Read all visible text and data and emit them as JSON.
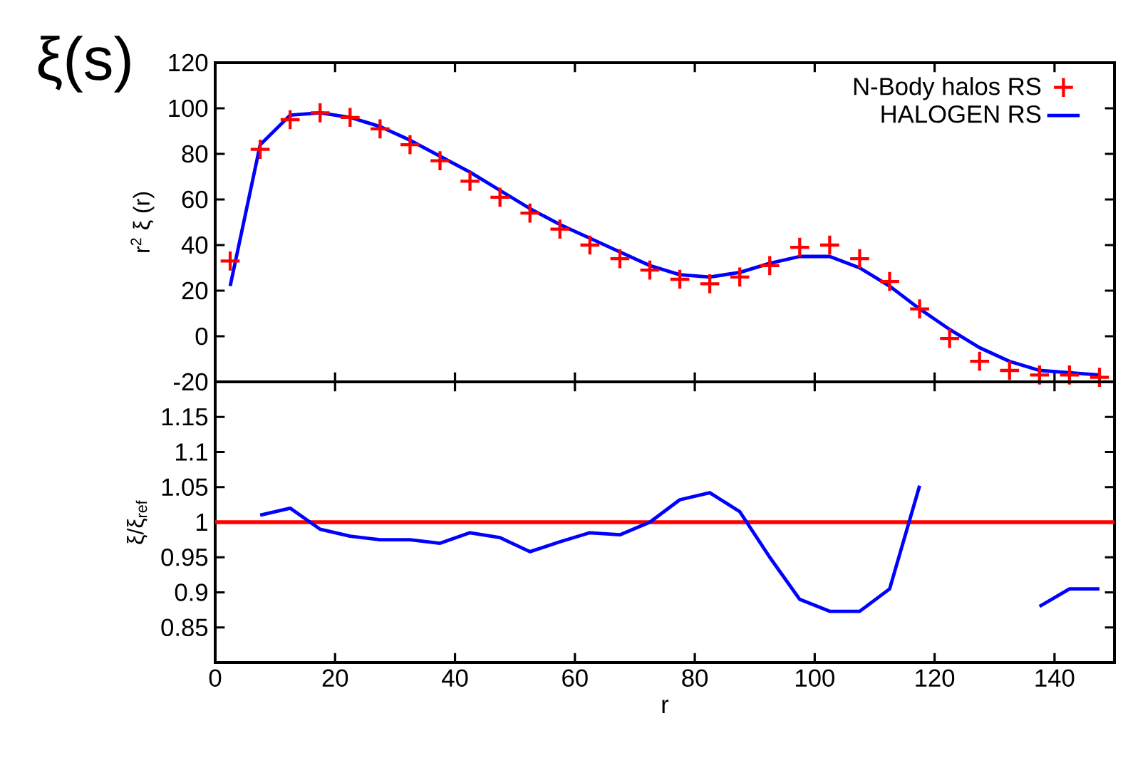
{
  "chart_data": [
    {
      "type": "line",
      "title": "ξ(s)",
      "ylabel": "r$^{2}$ ξ (r)",
      "x": [
        2.5,
        7.5,
        12.5,
        17.5,
        22.5,
        27.5,
        32.5,
        37.5,
        42.5,
        47.5,
        52.5,
        57.5,
        62.5,
        67.5,
        72.5,
        77.5,
        82.5,
        87.5,
        92.5,
        97.5,
        102.5,
        107.5,
        112.5,
        117.5,
        122.5,
        127.5,
        132.5,
        137.5,
        142.5,
        147.5
      ],
      "xlim": [
        0,
        150
      ],
      "xticks": [
        0,
        20,
        40,
        60,
        80,
        100,
        120,
        140
      ],
      "ylim": [
        -20,
        120
      ],
      "yticks": [
        -20,
        0,
        20,
        40,
        60,
        80,
        100,
        120
      ],
      "tick_labels": "y",
      "legend": "top right",
      "series": [
        {
          "name": "N-Body halos RS",
          "type": "scatter",
          "marker": "cross",
          "color": "#ff0000",
          "values": [
            33,
            82,
            95,
            98,
            96,
            91,
            84,
            77,
            68,
            61,
            54,
            47,
            40,
            34,
            29,
            25,
            23,
            26,
            31,
            39,
            40,
            34,
            24,
            12,
            -1,
            -11,
            -15,
            -17,
            -17,
            -18
          ]
        },
        {
          "name": "HALOGEN RS",
          "type": "line",
          "color": "#0000ff",
          "values": [
            22,
            84,
            97,
            98,
            96,
            92,
            86,
            79,
            72,
            64,
            56,
            49,
            43,
            37,
            31,
            27,
            26,
            28,
            32,
            35,
            35,
            30,
            22,
            12,
            3,
            -5,
            -11,
            -15,
            -16,
            -17
          ]
        }
      ]
    },
    {
      "type": "line",
      "xlabel": "r",
      "ylabel": "ξ/ξ$_{ref}$",
      "xlim": [
        0,
        150
      ],
      "xticks": [
        0,
        20,
        40,
        60,
        80,
        100,
        120,
        140
      ],
      "ylim": [
        0.8,
        1.2
      ],
      "yticks": [
        0.85,
        0.9,
        0.95,
        1,
        1.05,
        1.1,
        1.15
      ],
      "ref_lines": [
        {
          "axis": "y",
          "value": 1,
          "color": "#ff0000"
        }
      ],
      "series": [
        {
          "color": "#0000ff",
          "x": [
            7.5,
            12.5,
            17.5,
            22.5,
            27.5,
            32.5,
            37.5,
            42.5,
            47.5,
            52.5,
            57.5,
            62.5,
            67.5,
            72.5,
            77.5,
            82.5,
            87.5,
            92.5,
            97.5,
            102.5,
            107.5,
            112.5,
            117.5
          ],
          "values": [
            1.01,
            1.02,
            0.99,
            0.98,
            0.975,
            0.975,
            0.97,
            0.985,
            0.978,
            0.958,
            0.972,
            0.985,
            0.982,
            1.0,
            1.032,
            1.042,
            1.015,
            0.95,
            0.89,
            0.873,
            0.873,
            0.905,
            1.052
          ]
        },
        {
          "color": "#0000ff",
          "x": [
            137.5,
            142.5,
            147.5
          ],
          "values": [
            0.88,
            0.905,
            0.905
          ]
        }
      ]
    }
  ]
}
